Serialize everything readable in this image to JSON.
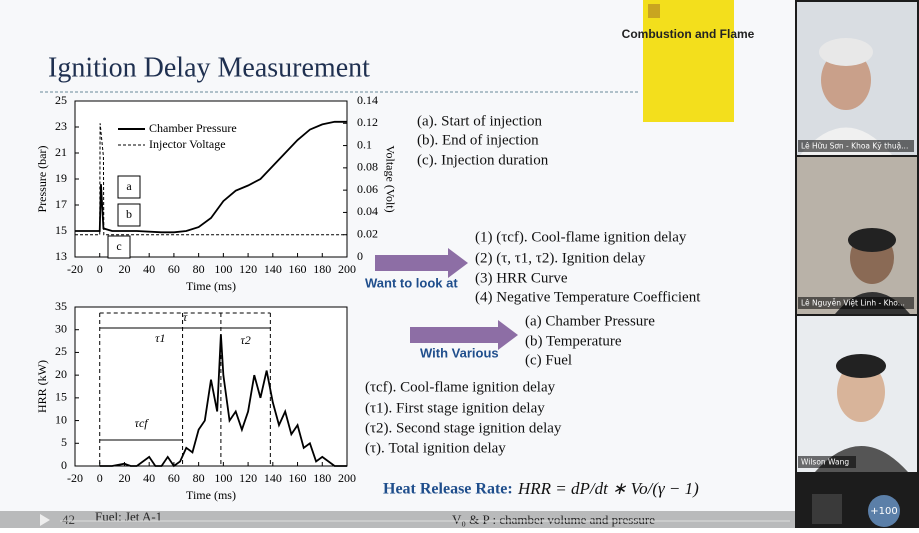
{
  "slide": {
    "title": "Ignition Delay Measurement",
    "page_number": "42",
    "footer_left": "Fuel: Jet A-1",
    "footer_right": "V₀ & P : chamber volume and pressure",
    "charts": [
      {
        "type": "line",
        "x_label": "Time (ms)",
        "y_label": "Pressure (bar)",
        "y2_label": "Voltage (Volt)",
        "xlim": [
          -20,
          200
        ],
        "xticks": [
          -20,
          0,
          20,
          40,
          60,
          80,
          100,
          120,
          140,
          160,
          180,
          200
        ],
        "ylim": [
          13,
          25
        ],
        "yticks": [
          13,
          15,
          17,
          19,
          21,
          23,
          25
        ],
        "y2lim": [
          0,
          0.14
        ],
        "y2ticks": [
          0,
          0.02,
          0.04,
          0.06,
          0.08,
          0.1,
          0.12,
          0.14
        ],
        "series": [
          {
            "name": "Chamber Pressure",
            "color": "#000000",
            "style": "solid",
            "x": [
              -20,
              0,
              1,
              3,
              10,
              30,
              50,
              60,
              70,
              80,
              90,
              100,
              110,
              120,
              130,
              140,
              150,
              160,
              170,
              180,
              190,
              200
            ],
            "values": [
              15,
              15,
              18.6,
              15.2,
              15,
              15,
              14.9,
              14.9,
              15,
              15.3,
              16,
              17.3,
              18.1,
              18.5,
              19,
              20,
              21,
              22,
              22.8,
              23.2,
              23.4,
              23.4
            ]
          },
          {
            "name": "Injector Voltage",
            "color": "#000000",
            "style": "dashed",
            "axis": "y2",
            "x": [
              -20,
              0,
              0.3,
              3,
              3.3,
              200
            ],
            "values": [
              0.02,
              0.02,
              0.12,
              0.09,
              0.02,
              0.02
            ]
          }
        ],
        "annotations": [
          "a",
          "b",
          "c"
        ]
      },
      {
        "type": "line",
        "x_label": "Time (ms)",
        "y_label": "HRR (kW)",
        "xlim": [
          -20,
          200
        ],
        "xticks": [
          -20,
          0,
          20,
          40,
          60,
          80,
          100,
          120,
          140,
          160,
          180,
          200
        ],
        "ylim": [
          0,
          35
        ],
        "yticks": [
          0,
          5,
          10,
          15,
          20,
          25,
          30,
          35
        ],
        "series": [
          {
            "name": "HRR",
            "color": "#000000",
            "style": "solid",
            "x": [
              0,
              10,
              20,
              25,
              30,
              40,
              45,
              50,
              55,
              60,
              65,
              70,
              75,
              80,
              85,
              90,
              95,
              98,
              100,
              105,
              110,
              115,
              120,
              125,
              130,
              135,
              140,
              145,
              150,
              155,
              160,
              165,
              170,
              175,
              180,
              190,
              200
            ],
            "values": [
              0,
              0,
              0.5,
              0,
              0,
              2,
              0,
              0,
              2,
              0,
              1,
              4,
              3,
              8,
              10,
              19,
              12,
              29,
              20,
              10,
              12,
              8,
              12,
              20,
              15,
              21,
              14,
              9,
              12,
              7,
              9,
              4,
              5,
              1,
              2,
              0,
              0
            ]
          }
        ],
        "delay_marks": [
          0,
          67,
          98,
          138
        ],
        "annotations": [
          "τ",
          "τ1",
          "τ2",
          "τcf"
        ]
      }
    ],
    "injection_notes": [
      "(a). Start of injection",
      "(b). End of injection",
      "(c). Injection duration"
    ],
    "want_label": "Want to look at",
    "want_items": [
      "(1) (τcf). Cool-flame ignition delay",
      "(2) (τ, τ1, τ2). Ignition delay",
      "(3) HRR Curve",
      "(4) Negative Temperature Coefficient"
    ],
    "various_label": "With Various",
    "various_items": [
      "(a) Chamber Pressure",
      "(b) Temperature",
      "(c) Fuel"
    ],
    "delay_defs": [
      "(τcf). Cool-flame ignition delay",
      "(τ1). First stage ignition delay",
      "(τ2). Second stage ignition delay",
      "(τ). Total ignition delay"
    ],
    "formula_label": "Heat Release Rate:",
    "formula": "HRR = dP/dt ∗ Vo/(γ − 1)"
  },
  "journal": {
    "title": "Combustion and Flame"
  },
  "participants": [
    {
      "name": "Lê Hữu Sơn - Khoa Kỹ thuậ..."
    },
    {
      "name": "Lê Nguyễn Việt Linh - Kho..."
    },
    {
      "name": "Wilson Wang"
    }
  ],
  "overflow_count": "+100"
}
